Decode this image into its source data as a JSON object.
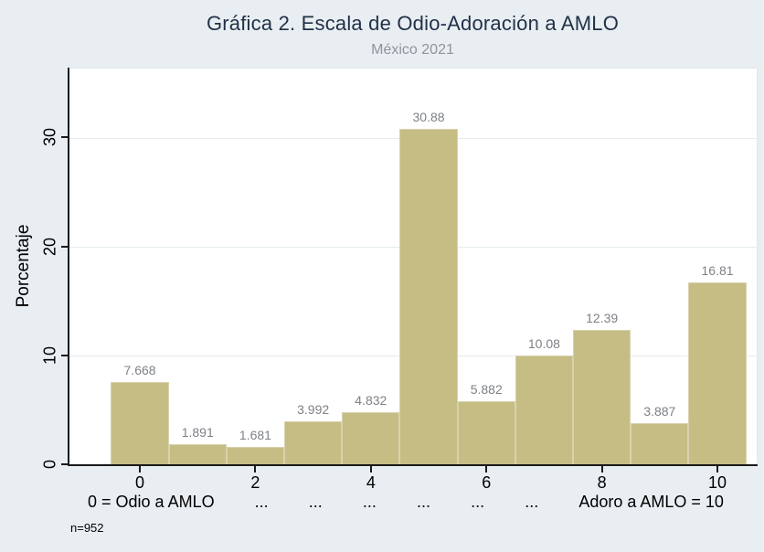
{
  "chart_data": {
    "type": "bar",
    "title": "Gráfica 2. Escala de Odio-Adoración a AMLO",
    "subtitle": "México 2021",
    "ylabel": "Porcentaje",
    "categories": [
      0,
      1,
      2,
      3,
      4,
      5,
      6,
      7,
      8,
      9,
      10
    ],
    "values": [
      7.668,
      1.891,
      1.681,
      3.992,
      4.832,
      30.88,
      5.882,
      10.08,
      12.39,
      3.887,
      16.81
    ],
    "bar_labels": [
      "7.668",
      "1.891",
      "1.681",
      "3.992",
      "4.832",
      "30.88",
      "5.882",
      "10.08",
      "12.39",
      "3.887",
      "16.81"
    ],
    "yticks": [
      0,
      10,
      20,
      30
    ],
    "xticks": [
      0,
      2,
      4,
      6,
      8,
      10
    ],
    "ylim": [
      0,
      36.4
    ],
    "xlim": [
      -1.235,
      10.68
    ],
    "grid": true,
    "legend": "none",
    "bin_width": 1,
    "xaxis_caption_parts": [
      "0 = Odio a AMLO",
      "...",
      "...",
      "...",
      "...",
      "...",
      "...",
      "Adoro a AMLO = 10"
    ],
    "note": "n=952",
    "colors": {
      "bar_fill": "#c6bd85",
      "bar_edge": "#d8d2ae",
      "background": "#e9eef2",
      "plot_background": "#ffffff",
      "gridline": "#e5ebee",
      "title": "#213247",
      "subtitle": "#8f949a",
      "bar_label": "#7d8187",
      "axis": "#1a1a1a"
    }
  }
}
